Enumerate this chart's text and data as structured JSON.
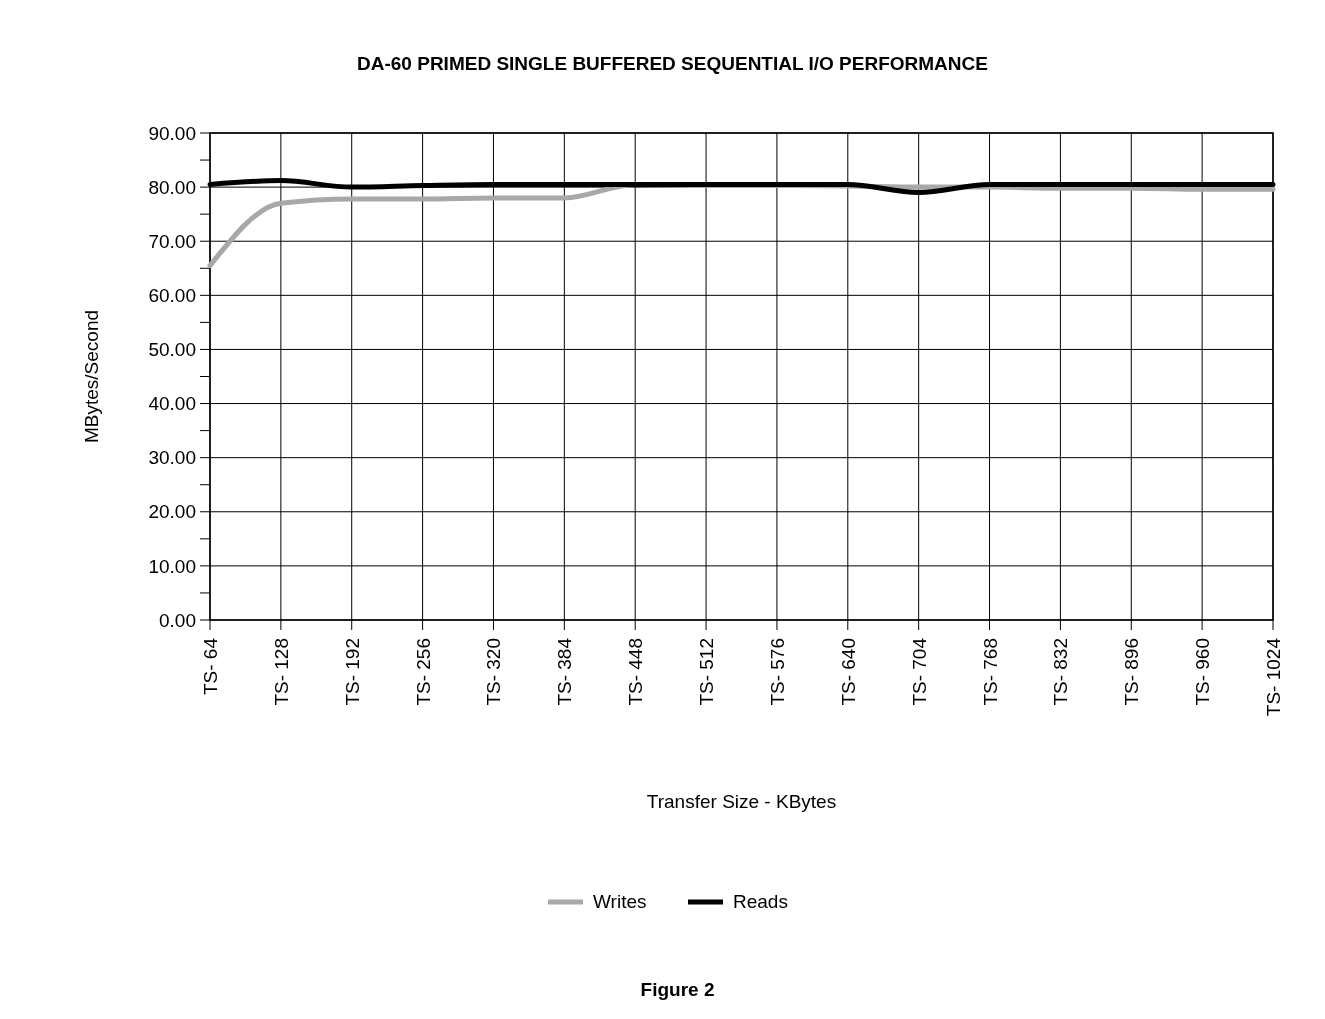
{
  "chart_data": {
    "type": "line",
    "title": "DA-60 PRIMED SINGLE BUFFERED SEQUENTIAL I/O PERFORMANCE",
    "xlabel": "Transfer Size - KBytes",
    "ylabel": "MBytes/Second",
    "annotations": [
      "Figure 2"
    ],
    "categories": [
      "TS- 64",
      "TS- 128",
      "TS- 192",
      "TS- 256",
      "TS- 320",
      "TS- 384",
      "TS- 448",
      "TS- 512",
      "TS- 576",
      "TS- 640",
      "TS- 704",
      "TS- 768",
      "TS- 832",
      "TS- 896",
      "TS- 960",
      "TS- 1024"
    ],
    "series": [
      {
        "name": "Writes",
        "color": "#a8a8a8",
        "values": [
          65.5,
          77,
          77.8,
          77.8,
          78,
          78,
          80.5,
          80.3,
          80.3,
          80.2,
          80,
          80,
          79.8,
          79.8,
          79.6,
          79.6
        ]
      },
      {
        "name": "Reads",
        "color": "#000000",
        "values": [
          80.5,
          81.2,
          80,
          80.3,
          80.5,
          80.5,
          80.5,
          80.5,
          80.5,
          80.5,
          79,
          80.5,
          80.5,
          80.5,
          80.5,
          80.5
        ]
      }
    ],
    "ylim": [
      0,
      90
    ],
    "yticks": [
      {
        "value": 0,
        "label": "0.00"
      },
      {
        "value": 5,
        "label": null
      },
      {
        "value": 10,
        "label": "10.00"
      },
      {
        "value": 15,
        "label": null
      },
      {
        "value": 20,
        "label": "20.00"
      },
      {
        "value": 25,
        "label": null
      },
      {
        "value": 30,
        "label": "30.00"
      },
      {
        "value": 35,
        "label": null
      },
      {
        "value": 40,
        "label": "40.00"
      },
      {
        "value": 45,
        "label": null
      },
      {
        "value": 50,
        "label": "50.00"
      },
      {
        "value": 55,
        "label": null
      },
      {
        "value": 60,
        "label": "60.00"
      },
      {
        "value": 65,
        "label": null
      },
      {
        "value": 70,
        "label": "70.00"
      },
      {
        "value": 75,
        "label": null
      },
      {
        "value": 80,
        "label": "80.00"
      },
      {
        "value": 85,
        "label": null
      },
      {
        "value": 90,
        "label": "90.00"
      }
    ],
    "grid": true,
    "legend": "bottom",
    "marker": "none",
    "line_style": "solid"
  }
}
